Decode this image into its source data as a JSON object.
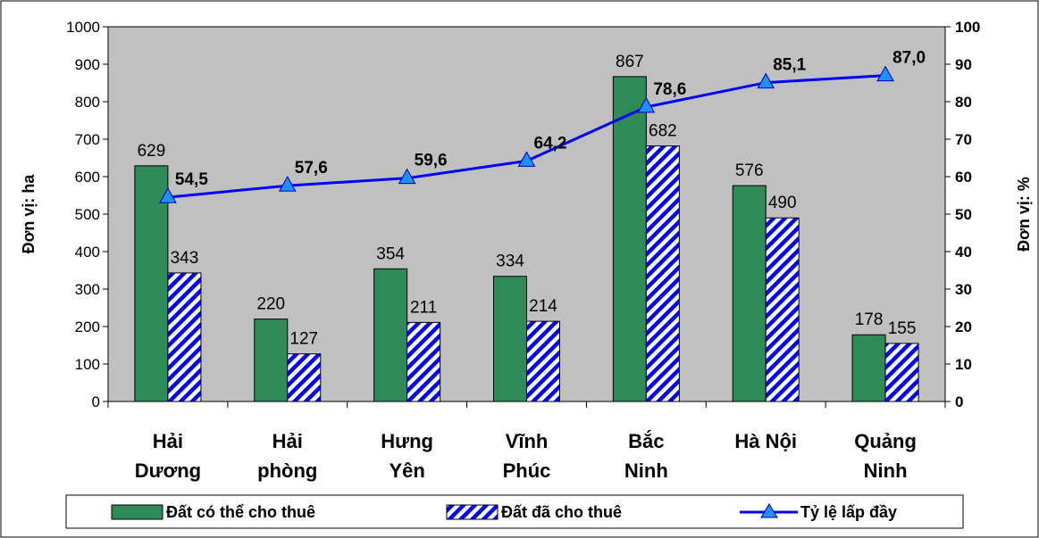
{
  "chart_data": {
    "type": "bar",
    "categories": [
      [
        "Hải",
        "Dương"
      ],
      [
        "Hải",
        "phòng"
      ],
      [
        "Hưng",
        "Yên"
      ],
      [
        "Vĩnh",
        "Phúc"
      ],
      [
        "Bắc",
        "Ninh"
      ],
      [
        "Hà Nội"
      ],
      [
        "Quảng",
        "Ninh"
      ]
    ],
    "series": [
      {
        "name": "Đất có thể cho thuê",
        "type": "bar",
        "axis": "left",
        "color": "#2e8b57",
        "values": [
          629,
          220,
          354,
          334,
          867,
          576,
          178
        ]
      },
      {
        "name": "Đất đã cho thuê",
        "type": "bar",
        "pattern": "hatch",
        "axis": "left",
        "color": "#0000ff",
        "values": [
          343,
          127,
          211,
          214,
          682,
          490,
          155
        ]
      },
      {
        "name": "Tỷ lệ lấp đầy",
        "type": "line",
        "axis": "right",
        "color": "#0000ff",
        "marker": "triangle",
        "marker_color": "#1e90ff",
        "values": [
          54.5,
          57.6,
          59.6,
          64.2,
          78.6,
          85.1,
          87.0
        ],
        "labels": [
          "54,5",
          "57,6",
          "59,6",
          "64,2",
          "78,6",
          "85,1",
          "87,0"
        ]
      }
    ],
    "ylabel_left": "Đơn vị: ha",
    "ylabel_right": "Đơn vị: %",
    "ylim_left": [
      0,
      1000
    ],
    "ylim_right": [
      0,
      100
    ],
    "yticks_left": [
      "0",
      "100",
      "200",
      "300",
      "400",
      "500",
      "600",
      "700",
      "800",
      "900",
      "1000"
    ],
    "yticks_right": [
      "0",
      "10",
      "20",
      "30",
      "40",
      "50",
      "60",
      "70",
      "80",
      "90",
      "100"
    ],
    "plot_background": "#c0c0c0",
    "grid": false,
    "legend_position": "bottom"
  }
}
